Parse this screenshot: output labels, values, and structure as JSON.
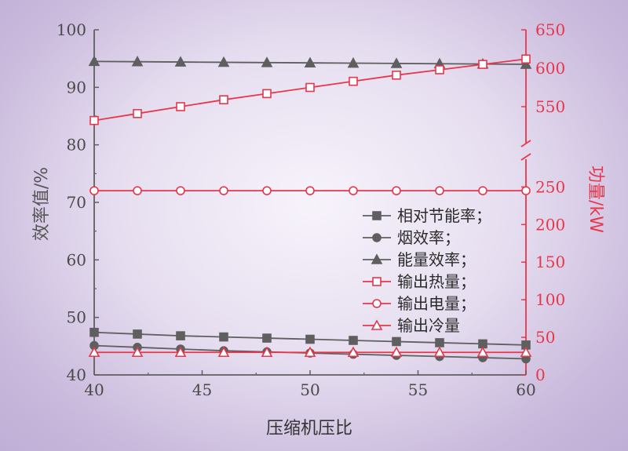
{
  "chart_data": {
    "type": "line",
    "title": "",
    "xlabel": "压缩机压比",
    "ylabel_left": "效率值/%",
    "ylabel_right": "功量/kW",
    "xlim": [
      40,
      60
    ],
    "ylim_left": [
      40,
      100
    ],
    "ylim_right_lower": [
      0,
      290
    ],
    "ylim_right_upper": [
      500,
      650
    ],
    "x_ticks": [
      40,
      45,
      50,
      55,
      60
    ],
    "y_left_ticks": [
      40,
      50,
      60,
      70,
      80,
      90,
      100
    ],
    "y_right_lower_ticks": [
      0,
      50,
      100,
      150,
      200,
      250
    ],
    "y_right_upper_ticks": [
      550,
      600,
      650
    ],
    "right_axis_break": true,
    "grid": false,
    "legend_position": "center-right",
    "colors": {
      "gray": "#5f5f5f",
      "red": "#e8364a"
    },
    "x": [
      40,
      42,
      44,
      46,
      48,
      50,
      52,
      54,
      56,
      58,
      60
    ],
    "series": [
      {
        "name": "相对节能率；",
        "axis": "left",
        "marker": "square-filled",
        "color": "#5f5f5f",
        "values": [
          47.4,
          47.1,
          46.8,
          46.6,
          46.4,
          46.2,
          46.0,
          45.8,
          45.6,
          45.4,
          45.2
        ]
      },
      {
        "name": "烟效率；",
        "axis": "left",
        "marker": "circle-filled",
        "color": "#5f5f5f",
        "values": [
          45.1,
          44.8,
          44.5,
          44.2,
          44.0,
          43.8,
          43.6,
          43.4,
          43.2,
          43.0,
          42.8
        ]
      },
      {
        "name": "能量效率；",
        "axis": "left",
        "marker": "triangle-filled",
        "color": "#5f5f5f",
        "values": [
          94.5,
          94.45,
          94.4,
          94.35,
          94.3,
          94.25,
          94.2,
          94.15,
          94.1,
          94.05,
          94.0
        ]
      },
      {
        "name": "输出热量；",
        "axis": "right",
        "marker": "square-open",
        "color": "#e8364a",
        "values": [
          532,
          541,
          550,
          559,
          567,
          575,
          583,
          591,
          598,
          605,
          612
        ]
      },
      {
        "name": "输出电量；",
        "axis": "right",
        "marker": "circle-open",
        "color": "#e8364a",
        "values": [
          245,
          245,
          245,
          245,
          245,
          245,
          245,
          245,
          245,
          245,
          245
        ]
      },
      {
        "name": "输出冷量",
        "axis": "right",
        "marker": "triangle-open",
        "color": "#e8364a",
        "values": [
          30,
          30,
          30,
          30,
          30,
          30,
          30,
          30,
          30,
          30,
          30
        ]
      }
    ]
  }
}
